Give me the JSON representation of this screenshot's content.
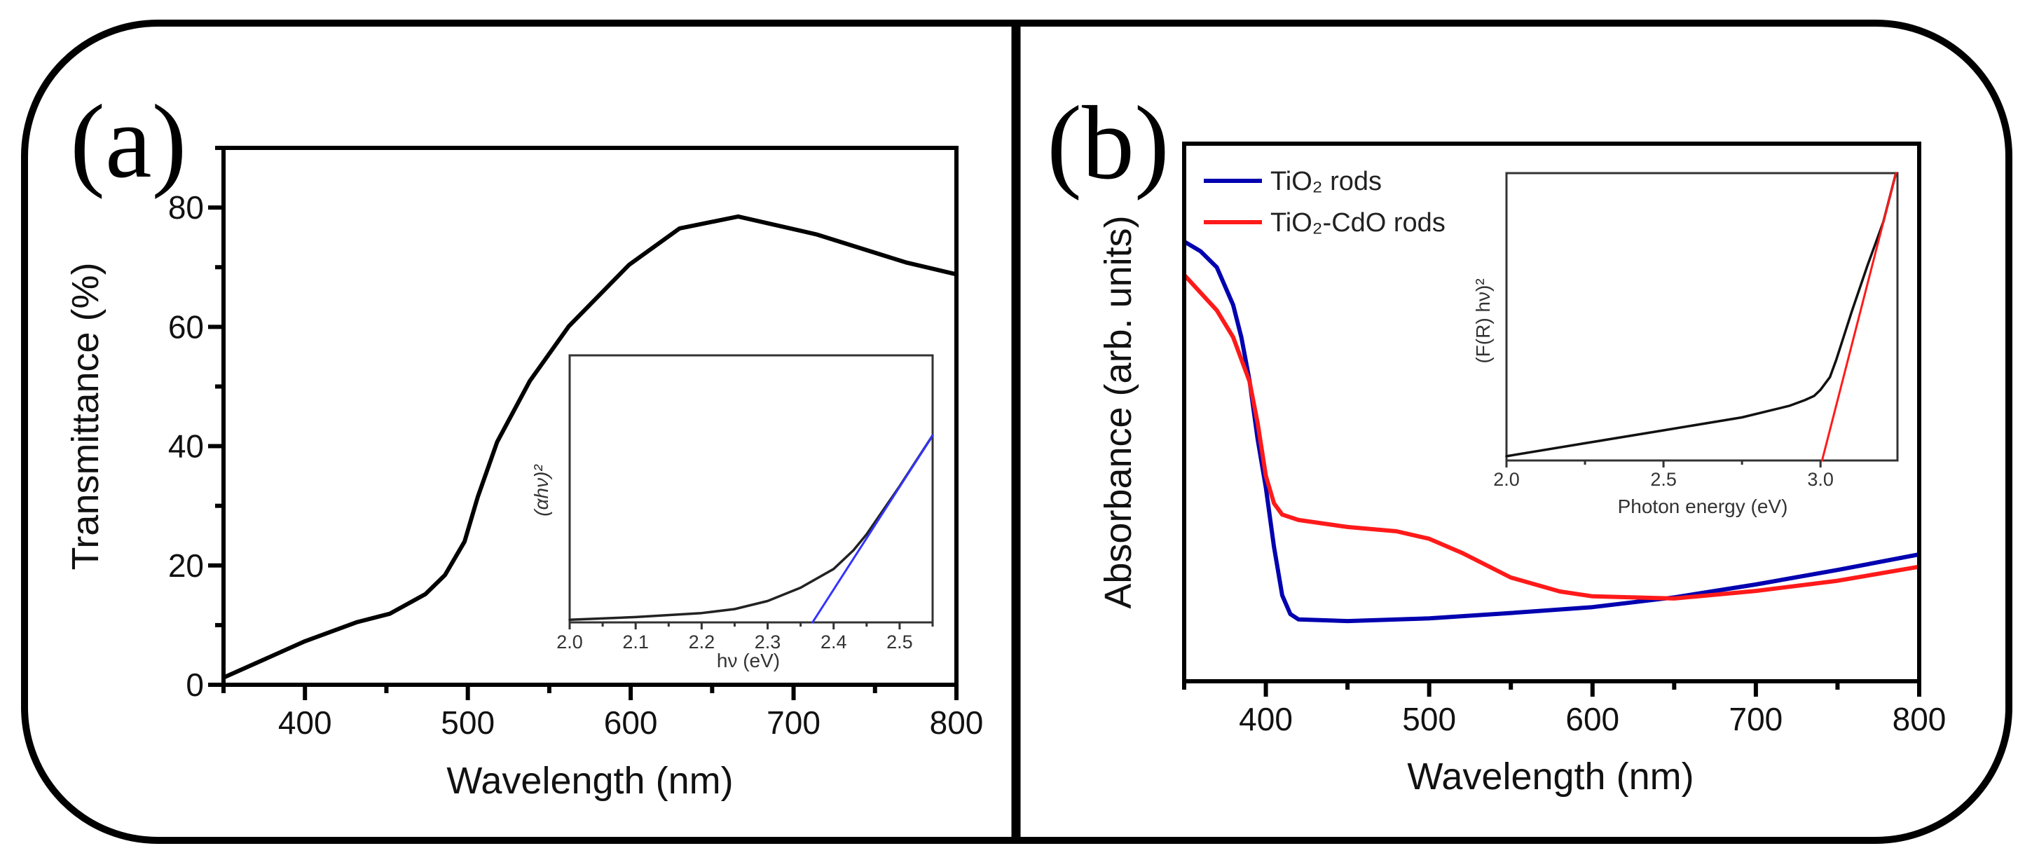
{
  "chart_data": [
    {
      "panel_label": "(a)",
      "type": "line",
      "title": "",
      "xlabel": "Wavelength (nm)",
      "ylabel": "Transmittance (%)",
      "xlim": [
        350,
        800
      ],
      "ylim": [
        0,
        90
      ],
      "xticks": [
        400,
        500,
        600,
        700,
        800
      ],
      "xtick_labels": [
        "400",
        "500",
        "600",
        "700",
        "800"
      ],
      "yticks": [
        0,
        20,
        40,
        60,
        80
      ],
      "ytick_labels": [
        "0",
        "20",
        "40",
        "60",
        "80"
      ],
      "grid": false,
      "series": [
        {
          "name": "Transmittance",
          "color": "#000000",
          "x": [
            350,
            400,
            432,
            452,
            474,
            486,
            498,
            506,
            518,
            538,
            562,
            599,
            630,
            666,
            714,
            769,
            800
          ],
          "y": [
            1.2,
            7.3,
            10.5,
            11.9,
            15.2,
            18.4,
            24.0,
            31.4,
            40.7,
            50.9,
            60.1,
            70.4,
            76.5,
            78.5,
            75.5,
            70.8,
            68.8
          ]
        }
      ],
      "inset": {
        "type": "line",
        "xlabel": "hν (eV)",
        "ylabel": "(αhν)²",
        "xlim": [
          2.0,
          2.55
        ],
        "ylim": [
          0,
          1
        ],
        "xticks": [
          2.0,
          2.1,
          2.2,
          2.3,
          2.4,
          2.5
        ],
        "xtick_labels": [
          "2.0",
          "2.1",
          "2.2",
          "2.3",
          "2.4",
          "2.5"
        ],
        "series": [
          {
            "name": "(αhν)² curve",
            "color": "#222222",
            "x": [
              2.0,
              2.1,
              2.2,
              2.25,
              2.3,
              2.35,
              2.4,
              2.43,
              2.45,
              2.5,
              2.55
            ],
            "y": [
              0.01,
              0.02,
              0.035,
              0.05,
              0.08,
              0.13,
              0.2,
              0.27,
              0.33,
              0.51,
              0.7
            ]
          },
          {
            "name": "Linear fit",
            "color": "#3333ff",
            "x": [
              2.368,
              2.55
            ],
            "y": [
              0.0,
              0.7
            ]
          }
        ]
      }
    },
    {
      "panel_label": "(b)",
      "type": "line",
      "title": "",
      "xlabel": "Wavelength (nm)",
      "ylabel": "Absorbance (arb. units)",
      "xlim": [
        350,
        800
      ],
      "ylim": [
        0,
        1
      ],
      "xticks": [
        400,
        500,
        600,
        700,
        800
      ],
      "xtick_labels": [
        "400",
        "500",
        "600",
        "700",
        "800"
      ],
      "yticks": [],
      "grid": false,
      "legend_position": "top-left",
      "series": [
        {
          "name": "TiO₂ rods",
          "color": "#0000b0",
          "x": [
            350,
            360,
            370,
            380,
            385,
            390,
            395,
            400,
            405,
            410,
            415,
            420,
            450,
            500,
            550,
            600,
            650,
            700,
            750,
            800
          ],
          "y": [
            0.818,
            0.8,
            0.77,
            0.7,
            0.64,
            0.56,
            0.45,
            0.36,
            0.25,
            0.16,
            0.125,
            0.115,
            0.112,
            0.117,
            0.127,
            0.138,
            0.156,
            0.18,
            0.207,
            0.236
          ]
        },
        {
          "name": "TiO₂-CdO rods",
          "color": "#ff1a1a",
          "x": [
            350,
            370,
            380,
            390,
            395,
            400,
            405,
            410,
            420,
            450,
            480,
            500,
            520,
            550,
            580,
            600,
            650,
            700,
            750,
            800
          ],
          "y": [
            0.756,
            0.69,
            0.64,
            0.558,
            0.48,
            0.382,
            0.331,
            0.31,
            0.3,
            0.287,
            0.279,
            0.265,
            0.239,
            0.193,
            0.167,
            0.158,
            0.154,
            0.168,
            0.187,
            0.213
          ]
        }
      ],
      "inset": {
        "type": "line",
        "xlabel": "Photon energy (eV)",
        "ylabel": "(F(R) hν)²",
        "xlim": [
          2.0,
          3.245
        ],
        "ylim": [
          0,
          1
        ],
        "xticks": [
          2.0,
          2.5,
          3.0
        ],
        "xtick_labels": [
          "2.0",
          "2.5",
          "3.0"
        ],
        "series": [
          {
            "name": "(F(R) hν)² curve",
            "color": "#111111",
            "x": [
              2.0,
              2.25,
              2.5,
              2.75,
              2.9,
              2.95,
              2.98,
              3.0,
              3.03,
              3.05,
              3.1,
              3.15,
              3.2,
              3.24
            ],
            "y": [
              0.015,
              0.06,
              0.105,
              0.15,
              0.19,
              0.21,
              0.225,
              0.246,
              0.29,
              0.35,
              0.52,
              0.68,
              0.83,
              1.0
            ]
          },
          {
            "name": "Linear fit",
            "color": "#ff1a1a",
            "x": [
              3.005,
              3.24
            ],
            "y": [
              0.0,
              1.0
            ]
          }
        ]
      }
    }
  ]
}
